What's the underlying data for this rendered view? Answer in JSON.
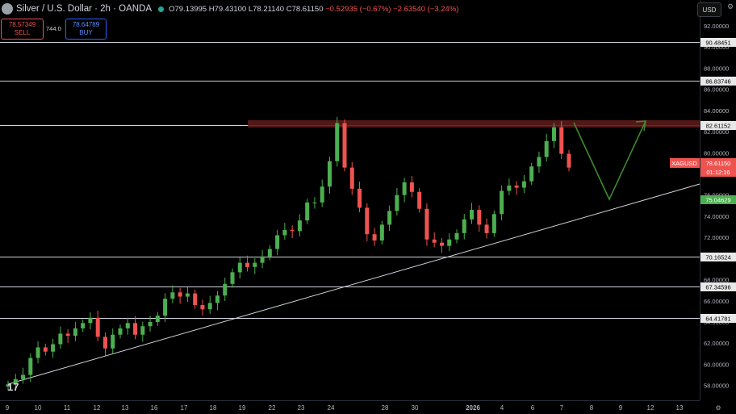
{
  "header": {
    "title": "Silver / U.S. Dollar · 2h · OANDA",
    "ohlc": {
      "o": "O79.13995",
      "h": "H79.43100",
      "l": "L78.21140",
      "c": "C78.61150",
      "chg": "−0.52935 (−0.67%)",
      "chg2": "−2.63540 (−3.24%)"
    }
  },
  "trade": {
    "sell_price": "78.57349",
    "sell_label": "SELL",
    "spread": "744.0",
    "buy_price": "78.64789",
    "buy_label": "BUY"
  },
  "currency": "USD",
  "colors": {
    "up": "#4caf50",
    "down": "#ef5350",
    "level": "#d1d4dc",
    "zone": "#5b1a1a",
    "arrow": "#3d8b2e"
  },
  "price_axis": {
    "ticks": [
      "92.00000",
      "90.00000",
      "88.00000",
      "86.00000",
      "84.00000",
      "82.00000",
      "80.00000",
      "78.00000",
      "76.00000",
      "74.00000",
      "72.00000",
      "70.00000",
      "68.00000",
      "66.00000",
      "64.00000",
      "62.00000",
      "60.00000",
      "58.00000"
    ],
    "min": 56.6,
    "max": 93.6
  },
  "levels": [
    "90.48451",
    "86.83746",
    "82.61152",
    "70.16524",
    "67.34596",
    "64.41781"
  ],
  "symbol": {
    "name": "XAGUSD",
    "price": "78.61150",
    "countdown": "01:12:16"
  },
  "green_tag": "75.04629",
  "time_axis": [
    "9",
    "10",
    "11",
    "12",
    "13",
    "16",
    "17",
    "18",
    "19",
    "22",
    "23",
    "24",
    "28",
    "30",
    "2026",
    "4",
    "6",
    "7",
    "8",
    "9",
    "12",
    "13"
  ],
  "chart_data": {
    "type": "candlestick",
    "series_desc": "approximate closes per session",
    "values": [
      58.1,
      58.6,
      59.0,
      60.6,
      61.6,
      61.2,
      61.9,
      62.9,
      62.7,
      63.4,
      63.9,
      64.4,
      62.6,
      61.5,
      62.8,
      63.4,
      63.9,
      62.8,
      63.6,
      64.0,
      64.6,
      66.2,
      66.8,
      66.4,
      66.7,
      65.6,
      65.2,
      65.8,
      66.5,
      67.6,
      68.7,
      69.6,
      69.2,
      69.6,
      70.2,
      70.9,
      72.2,
      72.7,
      72.6,
      73.6,
      75.3,
      75.3,
      76.8,
      79.2,
      82.8,
      78.6,
      76.6,
      74.8,
      72.3,
      71.7,
      73.2,
      74.5,
      76.0,
      77.2,
      76.3,
      74.7,
      71.8,
      71.5,
      71.2,
      71.8,
      72.4,
      73.7,
      74.6,
      73.2,
      72.4,
      74.2,
      76.4,
      76.9,
      76.7,
      77.3,
      78.7,
      79.6,
      81.1,
      82.4,
      79.9,
      78.6
    ]
  }
}
